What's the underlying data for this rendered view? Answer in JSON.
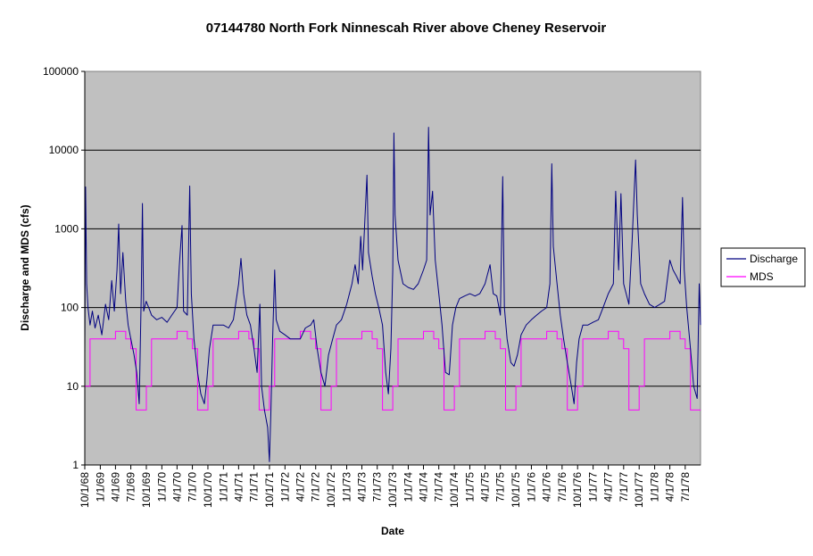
{
  "chart_data": {
    "type": "line",
    "title": "07144780 North Fork Ninnescah River above Cheney Reservoir",
    "xlabel": "Date",
    "ylabel": "Discharge and MDS (cfs)",
    "y_scale": "log",
    "ylim": [
      1,
      100000
    ],
    "y_ticks": [
      "1",
      "10",
      "100",
      "1000",
      "10000",
      "100000"
    ],
    "xlim": [
      "1968-10-01",
      "1978-09-30"
    ],
    "x_tick_labels": [
      "10/1/68",
      "1/1/69",
      "4/1/69",
      "7/1/69",
      "10/1/69",
      "1/1/70",
      "4/1/70",
      "7/1/70",
      "10/1/70",
      "1/1/71",
      "4/1/71",
      "7/1/71",
      "10/1/71",
      "1/1/72",
      "4/1/72",
      "7/1/72",
      "10/1/72",
      "1/1/73",
      "4/1/73",
      "7/1/73",
      "10/1/73",
      "1/1/74",
      "4/1/74",
      "7/1/74",
      "10/1/74",
      "1/1/75",
      "4/1/75",
      "7/1/75",
      "10/1/75",
      "1/1/76",
      "4/1/76",
      "7/1/76",
      "10/1/76",
      "1/1/77",
      "4/1/77",
      "7/1/77",
      "10/1/77",
      "1/1/78",
      "4/1/78",
      "7/1/78"
    ],
    "grid": "horizontal major gridlines",
    "plot_background": "#c0c0c0",
    "legend_position": "right",
    "series": [
      {
        "name": "Discharge",
        "color": "#000080",
        "points": [
          [
            "1968-10-01",
            25
          ],
          [
            "1968-10-06",
            3400
          ],
          [
            "1968-10-12",
            200
          ],
          [
            "1968-10-20",
            100
          ],
          [
            "1968-11-01",
            60
          ],
          [
            "1968-11-15",
            90
          ],
          [
            "1968-12-01",
            55
          ],
          [
            "1968-12-20",
            80
          ],
          [
            "1969-01-10",
            45
          ],
          [
            "1969-02-01",
            110
          ],
          [
            "1969-02-20",
            70
          ],
          [
            "1969-03-10",
            220
          ],
          [
            "1969-03-25",
            90
          ],
          [
            "1969-04-10",
            300
          ],
          [
            "1969-04-20",
            1150
          ],
          [
            "1969-05-01",
            150
          ],
          [
            "1969-05-15",
            500
          ],
          [
            "1969-06-01",
            120
          ],
          [
            "1969-06-15",
            60
          ],
          [
            "1969-07-01",
            40
          ],
          [
            "1969-07-20",
            25
          ],
          [
            "1969-08-05",
            15
          ],
          [
            "1969-08-20",
            6
          ],
          [
            "1969-09-01",
            150
          ],
          [
            "1969-09-08",
            2100
          ],
          [
            "1969-09-15",
            90
          ],
          [
            "1969-09-30",
            120
          ],
          [
            "1969-10-15",
            100
          ],
          [
            "1969-11-01",
            80
          ],
          [
            "1969-12-01",
            70
          ],
          [
            "1970-01-01",
            75
          ],
          [
            "1970-02-01",
            65
          ],
          [
            "1970-03-01",
            80
          ],
          [
            "1970-04-01",
            100
          ],
          [
            "1970-04-15",
            350
          ],
          [
            "1970-05-01",
            1100
          ],
          [
            "1970-05-10",
            90
          ],
          [
            "1970-06-01",
            80
          ],
          [
            "1970-06-15",
            3500
          ],
          [
            "1970-06-25",
            150
          ],
          [
            "1970-07-10",
            40
          ],
          [
            "1970-08-01",
            15
          ],
          [
            "1970-08-20",
            8
          ],
          [
            "1970-09-10",
            6
          ],
          [
            "1970-09-25",
            12
          ],
          [
            "1970-10-10",
            30
          ],
          [
            "1970-11-01",
            60
          ],
          [
            "1970-12-01",
            60
          ],
          [
            "1971-01-01",
            60
          ],
          [
            "1971-02-01",
            55
          ],
          [
            "1971-03-01",
            70
          ],
          [
            "1971-04-01",
            200
          ],
          [
            "1971-04-15",
            420
          ],
          [
            "1971-05-01",
            150
          ],
          [
            "1971-05-20",
            80
          ],
          [
            "1971-06-10",
            60
          ],
          [
            "1971-07-01",
            30
          ],
          [
            "1971-07-20",
            15
          ],
          [
            "1971-08-05",
            110
          ],
          [
            "1971-08-15",
            10
          ],
          [
            "1971-09-01",
            5
          ],
          [
            "1971-09-20",
            3
          ],
          [
            "1971-10-01",
            1.1
          ],
          [
            "1971-10-10",
            5
          ],
          [
            "1971-10-20",
            40
          ],
          [
            "1971-11-01",
            300
          ],
          [
            "1971-11-10",
            70
          ],
          [
            "1971-12-01",
            50
          ],
          [
            "1972-01-01",
            45
          ],
          [
            "1972-02-01",
            40
          ],
          [
            "1972-03-01",
            40
          ],
          [
            "1972-04-01",
            40
          ],
          [
            "1972-05-01",
            55
          ],
          [
            "1972-06-01",
            60
          ],
          [
            "1972-06-20",
            70
          ],
          [
            "1972-07-10",
            30
          ],
          [
            "1972-08-01",
            15
          ],
          [
            "1972-08-25",
            10
          ],
          [
            "1972-09-15",
            25
          ],
          [
            "1972-10-10",
            40
          ],
          [
            "1972-11-01",
            60
          ],
          [
            "1972-12-01",
            70
          ],
          [
            "1973-01-01",
            110
          ],
          [
            "1973-02-01",
            200
          ],
          [
            "1973-02-20",
            350
          ],
          [
            "1973-03-10",
            200
          ],
          [
            "1973-03-25",
            800
          ],
          [
            "1973-04-05",
            300
          ],
          [
            "1973-04-20",
            1500
          ],
          [
            "1973-05-01",
            4800
          ],
          [
            "1973-05-10",
            500
          ],
          [
            "1973-06-01",
            250
          ],
          [
            "1973-06-20",
            150
          ],
          [
            "1973-07-10",
            100
          ],
          [
            "1973-08-01",
            60
          ],
          [
            "1973-08-20",
            15
          ],
          [
            "1973-09-05",
            8
          ],
          [
            "1973-09-20",
            30
          ],
          [
            "1973-10-01",
            300
          ],
          [
            "1973-10-08",
            16500
          ],
          [
            "1973-10-15",
            1500
          ],
          [
            "1973-11-01",
            400
          ],
          [
            "1973-12-01",
            200
          ],
          [
            "1974-01-01",
            180
          ],
          [
            "1974-02-01",
            170
          ],
          [
            "1974-03-01",
            200
          ],
          [
            "1974-04-01",
            300
          ],
          [
            "1974-04-20",
            400
          ],
          [
            "1974-05-01",
            19500
          ],
          [
            "1974-05-10",
            1500
          ],
          [
            "1974-05-25",
            3000
          ],
          [
            "1974-06-10",
            400
          ],
          [
            "1974-07-01",
            150
          ],
          [
            "1974-07-20",
            60
          ],
          [
            "1974-08-10",
            15
          ],
          [
            "1974-09-01",
            14
          ],
          [
            "1974-09-20",
            60
          ],
          [
            "1974-10-10",
            100
          ],
          [
            "1974-11-01",
            130
          ],
          [
            "1974-12-01",
            140
          ],
          [
            "1975-01-01",
            150
          ],
          [
            "1975-02-01",
            140
          ],
          [
            "1975-03-01",
            150
          ],
          [
            "1975-04-01",
            200
          ],
          [
            "1975-05-01",
            350
          ],
          [
            "1975-05-20",
            150
          ],
          [
            "1975-06-10",
            140
          ],
          [
            "1975-07-01",
            80
          ],
          [
            "1975-07-15",
            4600
          ],
          [
            "1975-07-25",
            100
          ],
          [
            "1975-08-10",
            40
          ],
          [
            "1975-09-01",
            20
          ],
          [
            "1975-09-20",
            18
          ],
          [
            "1975-10-10",
            25
          ],
          [
            "1975-11-01",
            45
          ],
          [
            "1975-12-01",
            60
          ],
          [
            "1976-01-01",
            70
          ],
          [
            "1976-02-01",
            80
          ],
          [
            "1976-03-01",
            90
          ],
          [
            "1976-04-01",
            100
          ],
          [
            "1976-04-20",
            200
          ],
          [
            "1976-05-01",
            6700
          ],
          [
            "1976-05-10",
            600
          ],
          [
            "1976-06-01",
            200
          ],
          [
            "1976-06-20",
            80
          ],
          [
            "1976-07-10",
            40
          ],
          [
            "1976-08-01",
            20
          ],
          [
            "1976-08-25",
            10
          ],
          [
            "1976-09-10",
            6
          ],
          [
            "1976-09-25",
            20
          ],
          [
            "1976-10-10",
            40
          ],
          [
            "1976-11-01",
            60
          ],
          [
            "1976-12-01",
            60
          ],
          [
            "1977-01-01",
            65
          ],
          [
            "1977-02-01",
            70
          ],
          [
            "1977-03-01",
            100
          ],
          [
            "1977-04-01",
            150
          ],
          [
            "1977-05-01",
            200
          ],
          [
            "1977-05-15",
            3000
          ],
          [
            "1977-06-01",
            300
          ],
          [
            "1977-06-15",
            2800
          ],
          [
            "1977-07-01",
            200
          ],
          [
            "1977-08-01",
            110
          ],
          [
            "1977-08-20",
            700
          ],
          [
            "1977-09-10",
            7500
          ],
          [
            "1977-09-20",
            1500
          ],
          [
            "1977-10-10",
            200
          ],
          [
            "1977-11-01",
            150
          ],
          [
            "1977-12-01",
            110
          ],
          [
            "1978-01-01",
            100
          ],
          [
            "1978-02-01",
            110
          ],
          [
            "1978-03-01",
            120
          ],
          [
            "1978-04-01",
            400
          ],
          [
            "1978-04-20",
            300
          ],
          [
            "1978-05-10",
            250
          ],
          [
            "1978-06-01",
            200
          ],
          [
            "1978-06-15",
            2500
          ],
          [
            "1978-06-25",
            300
          ],
          [
            "1978-07-10",
            100
          ],
          [
            "1978-08-01",
            30
          ],
          [
            "1978-08-20",
            10
          ],
          [
            "1978-09-10",
            7
          ],
          [
            "1978-09-22",
            200
          ],
          [
            "1978-09-30",
            60
          ]
        ]
      },
      {
        "name": "MDS",
        "color": "#ff00ff",
        "annual_pattern": [
          {
            "from_month": 10,
            "value": 10
          },
          {
            "from_month": 11,
            "value": 40
          },
          {
            "from_month": 4,
            "value": 50
          },
          {
            "from_month": 6,
            "value": 40
          },
          {
            "from_month": 7,
            "value": 30
          },
          {
            "from_month": 8,
            "value": 5
          }
        ]
      }
    ]
  }
}
